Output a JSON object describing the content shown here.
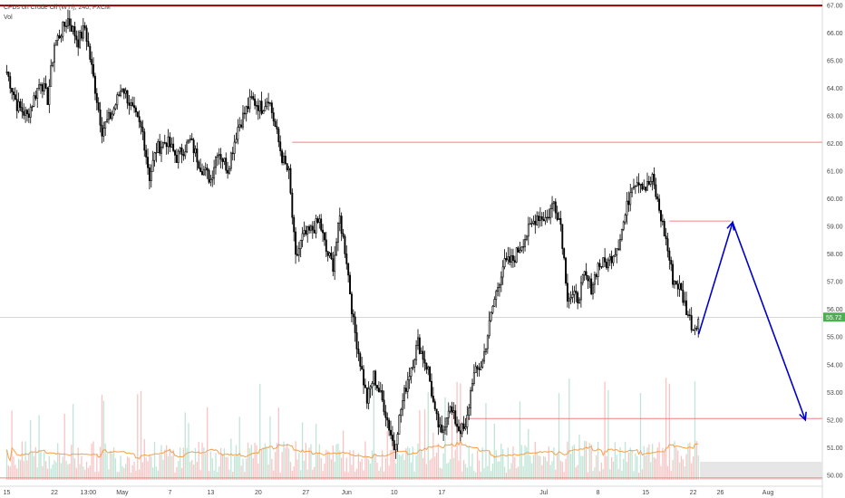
{
  "header": {
    "title": "CFDs on Crude Oil (WTI), 240, FXCM",
    "indicator": "Vol"
  },
  "colors": {
    "candle_up": "#ffffff",
    "candle_down": "#000000",
    "candle_outline": "#000000",
    "level_line": "#f08080",
    "top_level_line": "#990000",
    "projection": "#0000cc",
    "volume_up": "#a9dcc8",
    "volume_down": "#f5b1b1",
    "volume_ma": "#f3a14b",
    "price_tag": "#4caf50",
    "axis_text": "#444444"
  },
  "chart_data": {
    "type": "candlestick",
    "y_axis": {
      "min": 49.6,
      "max": 67.2,
      "ticks": [
        "50.00",
        "51.00",
        "52.00",
        "53.00",
        "54.00",
        "55.00",
        "56.00",
        "57.00",
        "58.00",
        "59.00",
        "60.00",
        "61.00",
        "62.00",
        "63.00",
        "64.00",
        "65.00",
        "66.00",
        "67.00"
      ],
      "current_price": "55.72"
    },
    "x_axis": {
      "tick_labels": [
        "15",
        "22",
        "13:00",
        "May",
        "7",
        "13",
        "20",
        "27",
        "Jun",
        "10",
        "17",
        "Jul",
        "8",
        "15",
        "22",
        "26",
        "Aug"
      ],
      "tick_days": [
        0,
        7,
        12,
        17,
        24,
        30,
        37,
        44,
        50,
        57,
        64,
        79,
        87,
        94,
        101,
        105,
        112
      ],
      "day_min": -1,
      "day_max": 120
    },
    "price_path": [
      [
        0,
        64.6
      ],
      [
        1.5,
        63.4
      ],
      [
        3,
        63.0
      ],
      [
        5,
        64.3
      ],
      [
        6,
        63.6
      ],
      [
        7,
        65.6
      ],
      [
        9,
        66.5
      ],
      [
        10.5,
        65.7
      ],
      [
        11.5,
        66.2
      ],
      [
        13,
        64.0
      ],
      [
        14,
        62.5
      ],
      [
        15.5,
        63.1
      ],
      [
        17,
        64.1
      ],
      [
        18.5,
        63.2
      ],
      [
        20,
        62.4
      ],
      [
        21,
        60.8
      ],
      [
        22,
        61.8
      ],
      [
        23.5,
        62.1
      ],
      [
        25,
        61.5
      ],
      [
        27,
        62.1
      ],
      [
        28.5,
        61.2
      ],
      [
        30,
        60.7
      ],
      [
        31,
        61.8
      ],
      [
        32.5,
        61.1
      ],
      [
        34,
        62.6
      ],
      [
        36,
        63.6
      ],
      [
        37.5,
        63.3
      ],
      [
        38.5,
        63.7
      ],
      [
        39.5,
        62.6
      ],
      [
        40.5,
        61.5
      ],
      [
        41.5,
        60.9
      ],
      [
        42.5,
        57.8
      ],
      [
        43.5,
        58.6
      ],
      [
        45,
        58.9
      ],
      [
        46,
        59.2
      ],
      [
        47,
        58.1
      ],
      [
        48,
        57.6
      ],
      [
        49,
        59.3
      ],
      [
        50,
        57.8
      ],
      [
        51,
        55.5
      ],
      [
        52,
        54.1
      ],
      [
        53,
        52.7
      ],
      [
        54,
        53.6
      ],
      [
        55.5,
        52.5
      ],
      [
        57,
        51.0
      ],
      [
        58,
        52.4
      ],
      [
        59,
        53.5
      ],
      [
        60.5,
        54.8
      ],
      [
        62,
        53.8
      ],
      [
        63,
        52.2
      ],
      [
        64,
        51.4
      ],
      [
        65,
        52.5
      ],
      [
        66.5,
        51.7
      ],
      [
        67.5,
        51.6
      ],
      [
        68.5,
        53.5
      ],
      [
        70,
        54.1
      ],
      [
        71.5,
        56.1
      ],
      [
        73,
        57.6
      ],
      [
        74.5,
        57.8
      ],
      [
        76,
        58.5
      ],
      [
        78,
        59.4
      ],
      [
        79.5,
        59.3
      ],
      [
        80.5,
        59.9
      ],
      [
        81.5,
        59.1
      ],
      [
        82.5,
        56.5
      ],
      [
        84,
        56.4
      ],
      [
        85,
        57.2
      ],
      [
        86,
        56.8
      ],
      [
        87,
        57.6
      ],
      [
        88.5,
        57.7
      ],
      [
        90,
        58.4
      ],
      [
        91,
        59.4
      ],
      [
        92,
        60.6
      ],
      [
        93,
        60.7
      ],
      [
        94,
        60.4
      ],
      [
        95,
        60.7
      ],
      [
        96,
        59.6
      ],
      [
        97,
        58.5
      ],
      [
        98,
        57.1
      ],
      [
        99,
        56.8
      ],
      [
        100,
        56.0
      ],
      [
        101,
        55.3
      ],
      [
        101.8,
        55.7
      ]
    ],
    "horizontal_levels": [
      {
        "price": 67.0,
        "start_day": -1,
        "style": "top"
      },
      {
        "price": 62.05,
        "start_day": 42,
        "style": "level"
      },
      {
        "price": 59.2,
        "start_day": 97.5,
        "end_day": 106.5,
        "style": "level"
      },
      {
        "price": 52.05,
        "start_day": 67.5,
        "style": "level"
      },
      {
        "price": 49.9,
        "start_day": -1,
        "style": "level"
      }
    ],
    "current_price_line": 55.72,
    "projection_path": [
      [
        101.8,
        55.1
      ],
      [
        106.8,
        59.15
      ],
      [
        117.5,
        52.0
      ]
    ]
  }
}
